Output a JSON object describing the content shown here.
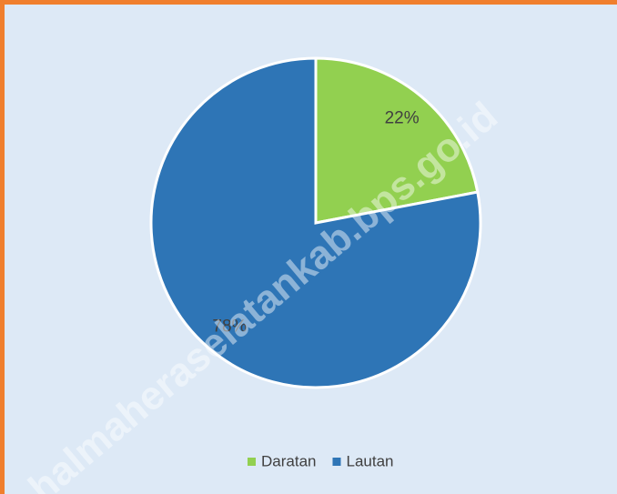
{
  "chart_data": {
    "type": "pie",
    "categories": [
      "Daratan",
      "Lautan"
    ],
    "values": [
      22,
      78
    ],
    "value_labels": [
      "22%",
      "78%"
    ],
    "colors": [
      "#92d050",
      "#2e75b6"
    ],
    "legend": "bottom"
  },
  "watermark": "halmaheraselatankab.bps.go.id"
}
